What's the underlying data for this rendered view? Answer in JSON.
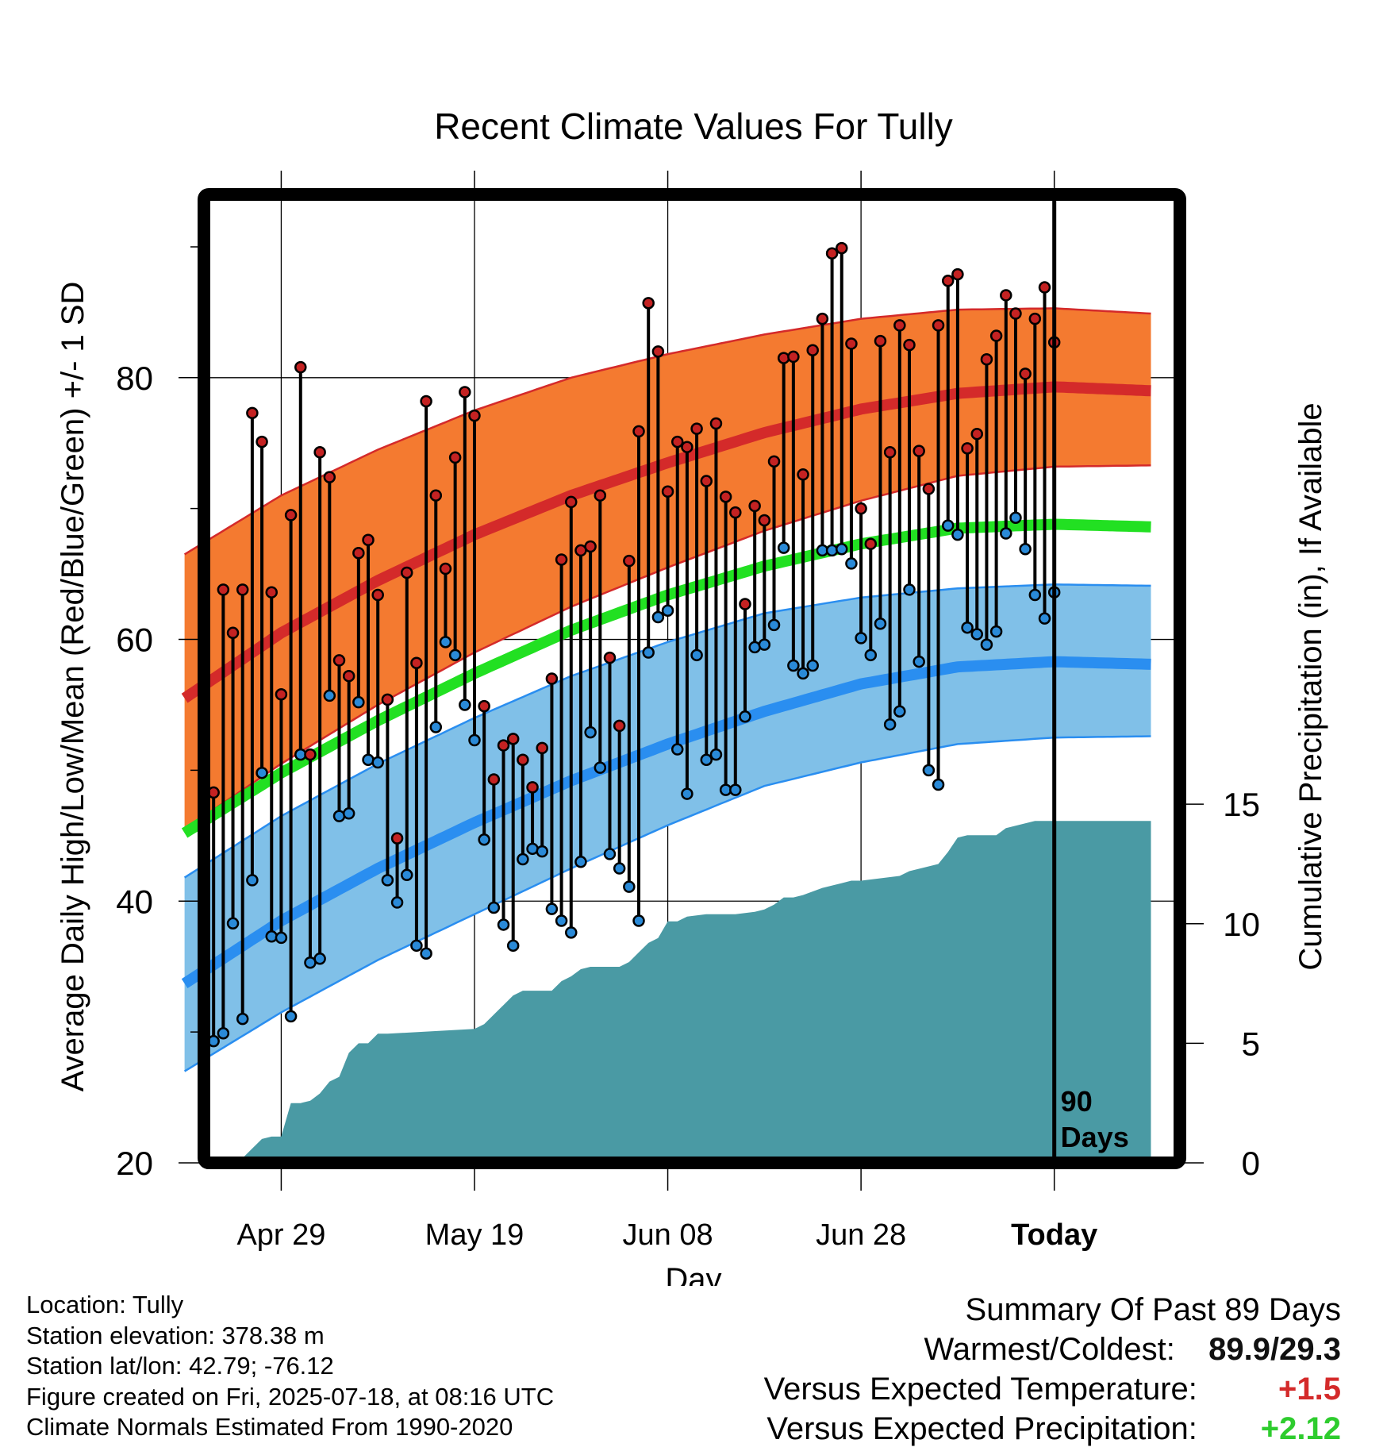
{
  "chart_data": {
    "type": "line",
    "title": "Recent Climate Values For Tully",
    "xlabel": "Day",
    "ylabel": "Average Daily High/Low/Mean (Red/Blue/Green) +/- 1 SD",
    "y2label": "Cumulative Precipitation (in), If Available",
    "xlim": [
      0,
      100
    ],
    "ylim": [
      20,
      94
    ],
    "y2lim": [
      0,
      40.5
    ],
    "x_ticks": [
      {
        "x": 10,
        "label": "Apr 29"
      },
      {
        "x": 30,
        "label": "May 19"
      },
      {
        "x": 50,
        "label": "Jun 08"
      },
      {
        "x": 70,
        "label": "Jun 28"
      },
      {
        "x": 90,
        "label": "Today"
      }
    ],
    "y_ticks": [
      20,
      40,
      60,
      80
    ],
    "y_minor_ticks": [
      30,
      50,
      70,
      90
    ],
    "y2_ticks": [
      0,
      5,
      10,
      15
    ],
    "today_x": 90,
    "today_label": [
      "90",
      "Days"
    ],
    "normals": {
      "x": [
        0,
        10,
        20,
        30,
        40,
        50,
        60,
        70,
        80,
        90,
        100
      ],
      "high_mean": [
        55.5,
        60.5,
        64.5,
        68.0,
        71.0,
        73.5,
        75.8,
        77.6,
        78.8,
        79.3,
        79.0
      ],
      "high_upper": [
        66.5,
        71.0,
        74.5,
        77.5,
        80.0,
        81.8,
        83.3,
        84.5,
        85.2,
        85.3,
        84.9
      ],
      "high_lower": [
        45.5,
        50.5,
        55.0,
        59.0,
        62.5,
        65.5,
        68.3,
        70.6,
        72.5,
        73.2,
        73.3
      ],
      "mean": [
        45.2,
        49.8,
        53.8,
        57.4,
        60.7,
        63.4,
        65.6,
        67.3,
        68.5,
        68.8,
        68.6
      ],
      "low_mean": [
        33.7,
        38.5,
        42.5,
        46.0,
        49.2,
        52.0,
        54.5,
        56.6,
        57.9,
        58.3,
        58.1
      ],
      "low_upper": [
        41.8,
        46.5,
        50.5,
        54.0,
        57.2,
        59.8,
        62.0,
        63.2,
        63.9,
        64.2,
        64.1
      ],
      "low_lower": [
        27.0,
        31.5,
        35.5,
        39.0,
        42.5,
        45.8,
        48.8,
        50.6,
        52.0,
        52.5,
        52.6
      ]
    },
    "daily": {
      "high": [
        73.6,
        48.3,
        63.8,
        60.5,
        63.8,
        77.3,
        75.1,
        63.6,
        55.8,
        69.5,
        80.8,
        51.2,
        74.3,
        72.4,
        58.4,
        57.2,
        66.6,
        67.6,
        63.4,
        55.4,
        44.8,
        65.1,
        58.2,
        78.2,
        71.0,
        65.4,
        73.9,
        78.9,
        77.1,
        54.9,
        49.3,
        51.9,
        52.4,
        50.8,
        48.7,
        51.7,
        57.0,
        66.1,
        70.5,
        66.8,
        67.1,
        71.0,
        58.6,
        53.4,
        66.0,
        75.9,
        85.7,
        82.0,
        71.3,
        75.1,
        74.7,
        76.1,
        72.1,
        76.5,
        70.9,
        69.7,
        62.7,
        70.2,
        69.1,
        73.6,
        81.5,
        81.6,
        72.6,
        82.1,
        84.5,
        89.5,
        89.9,
        82.6,
        70.0,
        67.3,
        82.8,
        74.3,
        84.0,
        82.5,
        74.4,
        71.5,
        84.0,
        87.4,
        87.9,
        74.6,
        75.7,
        81.4,
        83.2,
        86.3,
        84.9,
        80.3,
        84.5,
        86.9,
        82.7
      ],
      "low": [
        44.4,
        29.3,
        29.9,
        38.3,
        31.0,
        41.6,
        49.8,
        37.3,
        37.2,
        31.2,
        51.2,
        35.3,
        35.6,
        55.7,
        46.5,
        46.7,
        55.2,
        50.8,
        50.6,
        41.6,
        39.9,
        42.0,
        36.6,
        36.0,
        53.3,
        59.8,
        58.8,
        55.0,
        52.3,
        44.7,
        39.5,
        38.2,
        36.6,
        43.2,
        44.0,
        43.8,
        39.4,
        38.5,
        37.6,
        43.0,
        52.9,
        50.2,
        43.6,
        42.5,
        41.1,
        38.5,
        59.0,
        61.7,
        62.2,
        51.6,
        48.2,
        58.8,
        50.8,
        51.2,
        48.5,
        48.5,
        54.1,
        59.4,
        59.6,
        61.1,
        67.0,
        58.0,
        57.4,
        58.0,
        66.8,
        66.8,
        66.9,
        65.8,
        60.1,
        58.8,
        61.2,
        53.5,
        54.5,
        63.8,
        58.3,
        50.0,
        48.9,
        68.7,
        68.0,
        60.9,
        60.4,
        59.6,
        60.6,
        68.1,
        69.3,
        66.9,
        63.4,
        61.6,
        63.6
      ]
    },
    "precip": {
      "x": [
        0,
        3,
        6,
        7,
        8,
        9,
        10,
        10.5,
        11,
        12,
        13,
        14,
        15,
        16,
        17,
        18,
        19,
        20,
        21,
        30,
        31,
        32,
        33,
        34,
        35,
        38,
        39,
        40,
        41,
        42,
        45,
        46,
        47,
        48,
        49,
        50,
        51,
        52,
        54,
        55,
        57,
        59,
        60,
        61,
        62,
        63,
        64,
        66,
        67,
        68,
        69,
        70,
        72,
        74,
        75,
        78,
        79,
        80,
        81,
        82,
        84,
        85,
        86,
        87,
        88,
        89,
        90,
        100
      ],
      "y": [
        0,
        0,
        0.2,
        0.6,
        1.0,
        1.1,
        1.1,
        1.8,
        2.5,
        2.5,
        2.6,
        2.9,
        3.4,
        3.6,
        4.6,
        5.0,
        5.0,
        5.4,
        5.4,
        5.6,
        5.8,
        6.2,
        6.6,
        7.0,
        7.2,
        7.2,
        7.6,
        7.8,
        8.1,
        8.2,
        8.2,
        8.4,
        8.8,
        9.2,
        9.4,
        10.1,
        10.1,
        10.3,
        10.4,
        10.4,
        10.4,
        10.5,
        10.6,
        10.8,
        11.1,
        11.1,
        11.2,
        11.5,
        11.6,
        11.7,
        11.8,
        11.8,
        11.9,
        12.0,
        12.2,
        12.5,
        13.0,
        13.6,
        13.7,
        13.7,
        13.7,
        14.0,
        14.1,
        14.2,
        14.3,
        14.3,
        14.3,
        14.3
      ]
    }
  },
  "info": {
    "location": "Location: Tully",
    "elevation": "Station elevation: 378.38 m",
    "latlon": "Station lat/lon: 42.79; -76.12",
    "created": "Figure created on Fri, 2025-07-18, at 08:16 UTC",
    "normals": "Climate Normals Estimated From 1990-2020"
  },
  "summary": {
    "title": "Summary Of Past 89 Days",
    "warm_cold_label": "Warmest/Coldest:",
    "warm_cold_value": "89.9/29.3",
    "temp_label": "Versus Expected Temperature:",
    "temp_value": "+1.5",
    "precip_label": "Versus Expected Precipitation:",
    "precip_value": "+2.12"
  },
  "colors": {
    "high_band": "#f47a30",
    "high_line": "#d42a2a",
    "low_band": "#80c0e8",
    "low_line": "#2a8ef0",
    "mean_line": "#22e022",
    "precip_fill": "#4a9aa4",
    "high_marker": "#c42222",
    "low_marker": "#2a8ad8",
    "frame": "#000000"
  }
}
